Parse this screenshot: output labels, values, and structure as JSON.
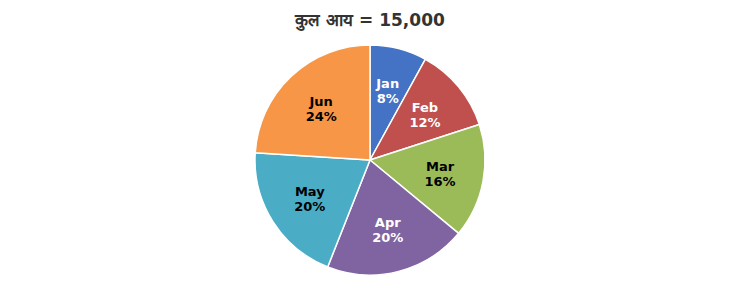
{
  "chart_data": {
    "type": "pie",
    "title": "कुल  आय = 15,000",
    "categories": [
      "Jan",
      "Feb",
      "Mar",
      "Apr",
      "May",
      "Jun"
    ],
    "values": [
      8,
      12,
      16,
      20,
      20,
      24
    ],
    "value_labels": [
      "8%",
      "12%",
      "16%",
      "20%",
      "20%",
      "24%"
    ],
    "colors": [
      "#4472C4",
      "#C0504D",
      "#9BBB59",
      "#8064A2",
      "#4BACC6",
      "#F79646"
    ],
    "data_labels": true
  }
}
